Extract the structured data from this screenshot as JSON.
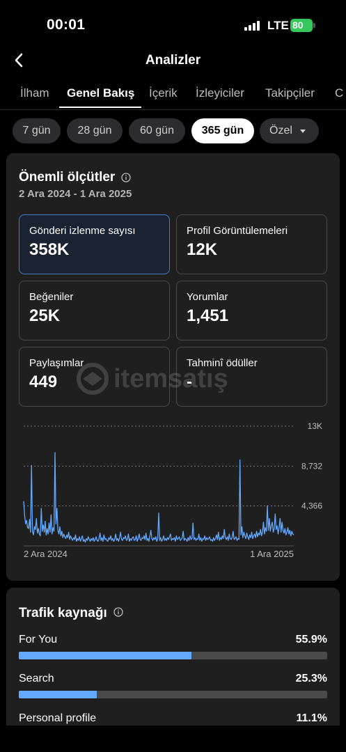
{
  "status": {
    "time": "00:01",
    "network": "LTE",
    "battery": "80"
  },
  "header": {
    "title": "Analizler"
  },
  "tabs": [
    {
      "label": "İlham"
    },
    {
      "label": "Genel Bakış"
    },
    {
      "label": "İçerik"
    },
    {
      "label": "İzleyiciler"
    },
    {
      "label": "Takipçiler"
    },
    {
      "label": "C"
    }
  ],
  "ranges": [
    {
      "label": "7 gün"
    },
    {
      "label": "28 gün"
    },
    {
      "label": "60 gün"
    },
    {
      "label": "365 gün"
    },
    {
      "label": "Özel"
    }
  ],
  "metrics_card": {
    "title": "Önemli ölçütler",
    "date_range": "2 Ara 2024 - 1 Ara 2025",
    "metrics": [
      {
        "label": "Gönderi izlenme sayısı",
        "value": "358K"
      },
      {
        "label": "Profil Görüntülemeleri",
        "value": "12K"
      },
      {
        "label": "Beğeniler",
        "value": "25K"
      },
      {
        "label": "Yorumlar",
        "value": "1,451"
      },
      {
        "label": "Paylaşımlar",
        "value": "449"
      },
      {
        "label": "Tahminî ödüller",
        "value": "-"
      }
    ]
  },
  "watermark": {
    "text": "itemsatış"
  },
  "chart_data": {
    "type": "line",
    "series": [
      {
        "values": [
          4900,
          3300,
          2400,
          2800,
          2000,
          1900,
          2900,
          1500,
          8800,
          1600,
          1200,
          2100,
          1800,
          3000,
          1400,
          1900,
          1300,
          1100,
          4100,
          1600,
          2300,
          1500,
          2700,
          1200,
          1900,
          1300,
          2500,
          1500,
          3400,
          1300,
          2000,
          1600,
          10200,
          2400,
          4100,
          1700,
          1300,
          2100,
          1100,
          1600,
          900,
          1300,
          1000,
          800,
          1200,
          900,
          1500,
          700,
          1100,
          800,
          600,
          900,
          700,
          1200,
          500,
          800,
          600,
          1000,
          500,
          800,
          1100,
          500,
          700,
          400,
          800,
          600,
          1000,
          700,
          500,
          800,
          600,
          900,
          500,
          700,
          1000,
          600,
          500,
          800,
          1400,
          600,
          900,
          500,
          1200,
          700,
          800,
          600,
          500,
          900,
          700,
          1100,
          600,
          800,
          500,
          700,
          1300,
          600,
          800,
          500,
          900,
          1500,
          700,
          600,
          900,
          800,
          1100,
          600,
          700,
          1300,
          500,
          800,
          600,
          900,
          1000,
          600,
          700,
          1100,
          500,
          800,
          1300,
          700,
          600,
          900,
          800,
          1100,
          700,
          1400,
          600,
          800,
          500,
          1100,
          1700,
          800,
          600,
          900,
          700,
          1000,
          500,
          800,
          3600,
          600,
          900,
          500,
          700,
          1100,
          600,
          800,
          600,
          900,
          700,
          1000,
          1300,
          600,
          800,
          700,
          900,
          500,
          1100,
          700,
          800,
          1000,
          600,
          700,
          900,
          1600,
          600,
          800,
          700,
          500,
          900,
          600,
          1100,
          700,
          800,
          2500,
          700,
          900,
          600,
          800,
          700,
          1300,
          600,
          900,
          500,
          800,
          700,
          1100,
          600,
          900,
          700,
          800,
          1000,
          600,
          700,
          500,
          900,
          600,
          800,
          1200,
          700,
          1500,
          600,
          900,
          700,
          1100,
          800,
          1800,
          900,
          700,
          1000,
          600,
          1300,
          800,
          700,
          900,
          1600,
          700,
          800,
          1000,
          600,
          800,
          700,
          9400,
          1200,
          2100,
          900,
          1500,
          1100,
          800,
          1400,
          1000,
          700,
          1200,
          900,
          1500,
          800,
          1100,
          1300,
          900,
          1600,
          1000,
          1400,
          1200,
          1800,
          1100,
          1500,
          2600,
          1300,
          2000,
          1600,
          4400,
          1700,
          3000,
          1600,
          2200,
          2600,
          1500,
          1900,
          3500,
          1800,
          2200,
          1300,
          2000,
          3000,
          1500,
          2600,
          1700,
          1400,
          1900,
          1200,
          1500,
          2000,
          1300,
          1700,
          1100,
          1600,
          1300,
          1200
        ]
      }
    ],
    "x_start_label": "2 Ara 2024",
    "x_end_label": "1 Ara 2025",
    "y_ticks": [
      "4,366",
      "8,732",
      "13K"
    ],
    "ylim": [
      0,
      13098
    ],
    "grid": true,
    "color": "#63a9ff"
  },
  "traffic_card": {
    "title": "Trafik kaynağı",
    "sources": [
      {
        "label": "For You",
        "pct": "55.9%",
        "value": 55.9
      },
      {
        "label": "Search",
        "pct": "25.3%",
        "value": 25.3
      },
      {
        "label": "Personal profile",
        "pct": "11.1%",
        "value": 11.1
      }
    ]
  }
}
